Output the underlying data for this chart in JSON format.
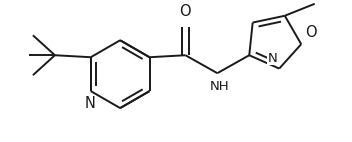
{
  "bg_color": "#ffffff",
  "line_color": "#1a1a1a",
  "line_width": 1.4,
  "font_size": 9.5,
  "figsize": [
    3.52,
    1.42
  ],
  "dpi": 100,
  "xlim": [
    0,
    352
  ],
  "ylim": [
    0,
    142
  ]
}
